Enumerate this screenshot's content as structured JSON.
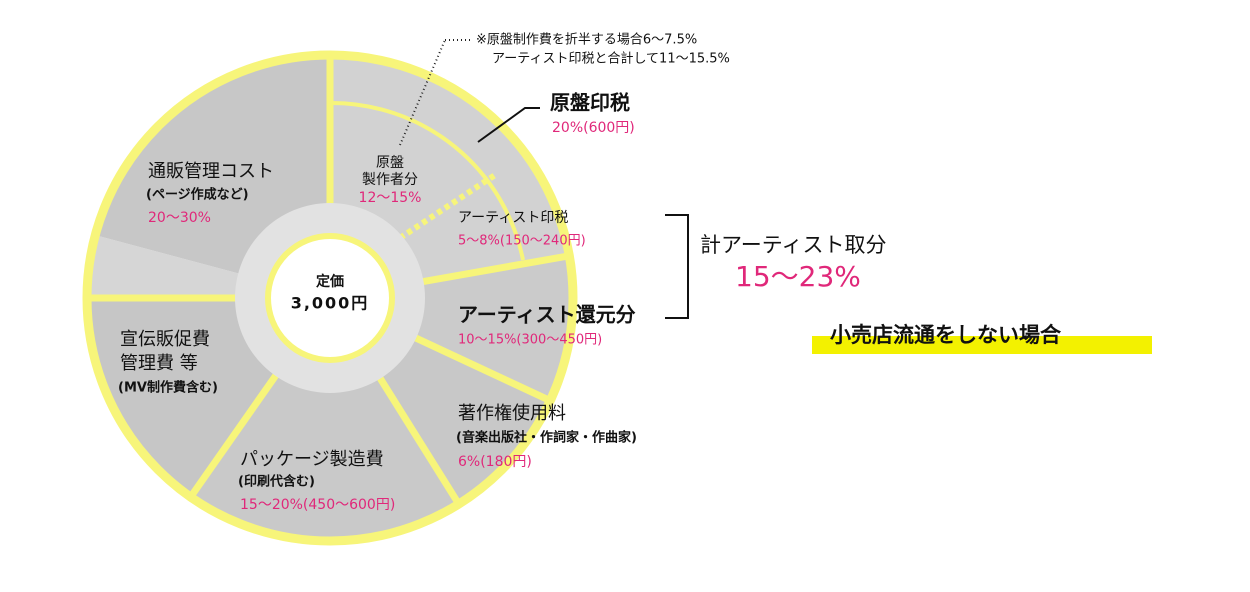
{
  "note": {
    "lines": [
      "※原盤制作費を折半する場合6〜7.5%",
      "アーティスト印税と合計して11〜15.5%"
    ]
  },
  "center": {
    "label": "定価",
    "price": "3,000円"
  },
  "segments": [
    {
      "title": [
        "原盤印税"
      ],
      "value": "20%(600円)"
    },
    {
      "title": [
        "原盤",
        "製作者分"
      ],
      "value": "12〜15%"
    },
    {
      "title": [
        "アーティスト印税"
      ],
      "value": "5〜8%(150〜240円)"
    },
    {
      "title": [
        "アーティスト還元分"
      ],
      "value": "10〜15%(300〜450円)"
    },
    {
      "title": [
        "著作権使用料"
      ],
      "sub": "(音楽出版社・作詞家・作曲家)",
      "value": "6%(180円)"
    },
    {
      "title": [
        "パッケージ製造費"
      ],
      "sub": "(印刷代含む)",
      "value": "15〜20%(450〜600円)"
    },
    {
      "title": [
        "宣伝販促費",
        "管理費 等"
      ],
      "sub": "(MV制作費含む)"
    },
    {
      "title": [
        "通販管理コスト"
      ],
      "sub": "(ページ作成など)",
      "value": "20〜30%"
    }
  ],
  "total": {
    "label": "計アーティスト取分",
    "value": "15〜23%"
  },
  "condition": "小売店流通をしない場合"
}
